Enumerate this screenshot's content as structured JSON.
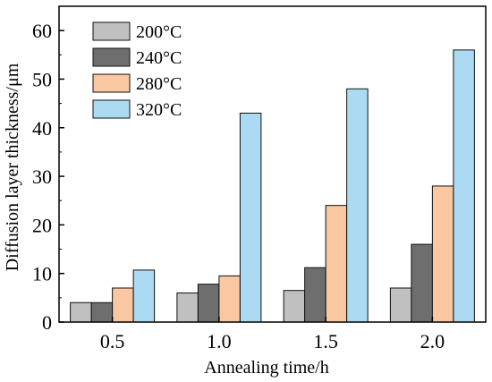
{
  "chart_data": {
    "type": "bar",
    "title": "",
    "xlabel": "Annealing time/h",
    "ylabel": "Diffusion layer thickness/μm",
    "categories": [
      "0.5",
      "1.0",
      "1.5",
      "2.0"
    ],
    "ylim": [
      0,
      65
    ],
    "yticks": [
      "0",
      "10",
      "20",
      "30",
      "40",
      "50",
      "60"
    ],
    "grid": false,
    "legend_position": "top-left",
    "series": [
      {
        "name": "200°C",
        "color": "#c0c0c0",
        "values": [
          4,
          6,
          6.5,
          7
        ]
      },
      {
        "name": "240°C",
        "color": "#6e6e6e",
        "values": [
          4,
          7.8,
          11.2,
          16
        ]
      },
      {
        "name": "280°C",
        "color": "#f9c7a1",
        "values": [
          7,
          9.5,
          24,
          28
        ]
      },
      {
        "name": "320°C",
        "color": "#acdaf3",
        "values": [
          10.7,
          43,
          48,
          56
        ]
      }
    ]
  }
}
